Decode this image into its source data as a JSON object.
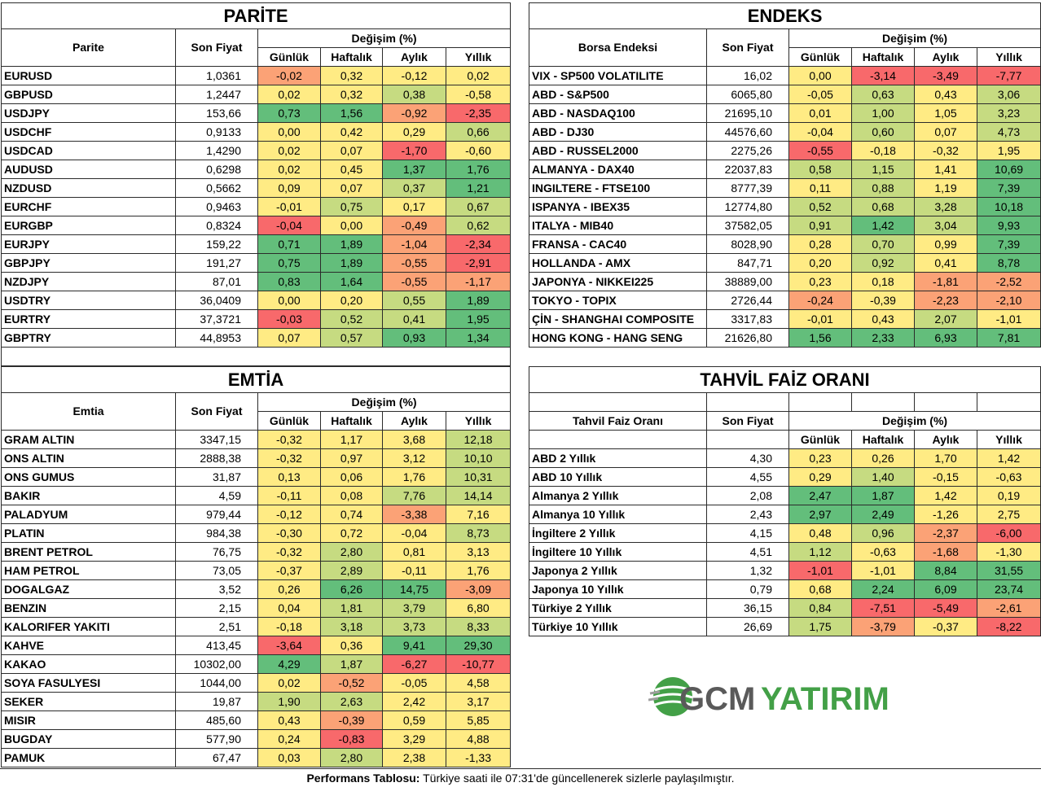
{
  "colors": {
    "red": "#f8696b",
    "orange": "#fba276",
    "yellow": "#ffeb84",
    "lightgreen": "#c6db81",
    "green": "#63be7b"
  },
  "headers": {
    "price": "Son Fiyat",
    "change": "Değişim (%)",
    "daily": "Günlük",
    "weekly": "Haftalık",
    "monthly": "Aylık",
    "yearly": "Yıllık"
  },
  "parite": {
    "title": "PARİTE",
    "name_header": "Parite",
    "rows": [
      {
        "name": "EURUSD",
        "price": "1,0361",
        "d": "-0,02",
        "w": "0,32",
        "m": "-0,12",
        "y": "0,02"
      },
      {
        "name": "GBPUSD",
        "price": "1,2447",
        "d": "0,02",
        "w": "0,32",
        "m": "0,38",
        "y": "-0,58"
      },
      {
        "name": "USDJPY",
        "price": "153,66",
        "d": "0,73",
        "w": "1,56",
        "m": "-0,92",
        "y": "-2,35"
      },
      {
        "name": "USDCHF",
        "price": "0,9133",
        "d": "0,00",
        "w": "0,42",
        "m": "0,29",
        "y": "0,66"
      },
      {
        "name": "USDCAD",
        "price": "1,4290",
        "d": "0,02",
        "w": "0,07",
        "m": "-1,70",
        "y": "-0,60"
      },
      {
        "name": "AUDUSD",
        "price": "0,6298",
        "d": "0,02",
        "w": "0,45",
        "m": "1,37",
        "y": "1,76"
      },
      {
        "name": "NZDUSD",
        "price": "0,5662",
        "d": "0,09",
        "w": "0,07",
        "m": "0,37",
        "y": "1,21"
      },
      {
        "name": "EURCHF",
        "price": "0,9463",
        "d": "-0,01",
        "w": "0,75",
        "m": "0,17",
        "y": "0,67"
      },
      {
        "name": "EURGBP",
        "price": "0,8324",
        "d": "-0,04",
        "w": "0,00",
        "m": "-0,49",
        "y": "0,62"
      },
      {
        "name": "EURJPY",
        "price": "159,22",
        "d": "0,71",
        "w": "1,89",
        "m": "-1,04",
        "y": "-2,34"
      },
      {
        "name": "GBPJPY",
        "price": "191,27",
        "d": "0,75",
        "w": "1,89",
        "m": "-0,55",
        "y": "-2,91"
      },
      {
        "name": "NZDJPY",
        "price": "87,01",
        "d": "0,83",
        "w": "1,64",
        "m": "-0,55",
        "y": "-1,17"
      },
      {
        "name": "USDTRY",
        "price": "36,0409",
        "d": "0,00",
        "w": "0,20",
        "m": "0,55",
        "y": "1,89"
      },
      {
        "name": "EURTRY",
        "price": "37,3721",
        "d": "-0,03",
        "w": "0,52",
        "m": "0,41",
        "y": "1,95"
      },
      {
        "name": "GBPTRY",
        "price": "44,8953",
        "d": "0,07",
        "w": "0,57",
        "m": "0,93",
        "y": "1,34"
      }
    ]
  },
  "endeks": {
    "title": "ENDEKS",
    "name_header": "Borsa Endeksi",
    "rows": [
      {
        "name": "VIX  - SP500 VOLATILITE",
        "price": "16,02",
        "d": "0,00",
        "w": "-3,14",
        "m": "-3,49",
        "y": "-7,77"
      },
      {
        "name": "ABD - S&P500",
        "price": "6065,80",
        "d": "-0,05",
        "w": "0,63",
        "m": "0,43",
        "y": "3,06"
      },
      {
        "name": "ABD - NASDAQ100",
        "price": "21695,10",
        "d": "0,01",
        "w": "1,00",
        "m": "1,05",
        "y": "3,23"
      },
      {
        "name": "ABD - DJ30",
        "price": "44576,60",
        "d": "-0,04",
        "w": "0,60",
        "m": "0,07",
        "y": "4,73"
      },
      {
        "name": "ABD - RUSSEL2000",
        "price": "2275,26",
        "d": "-0,55",
        "w": "-0,18",
        "m": "-0,32",
        "y": "1,95"
      },
      {
        "name": "ALMANYA - DAX40",
        "price": "22037,83",
        "d": "0,58",
        "w": "1,15",
        "m": "1,41",
        "y": "10,69"
      },
      {
        "name": "INGILTERE - FTSE100",
        "price": "8777,39",
        "d": "0,11",
        "w": "0,88",
        "m": "1,19",
        "y": "7,39"
      },
      {
        "name": "ISPANYA - IBEX35",
        "price": "12774,80",
        "d": "0,52",
        "w": "0,68",
        "m": "3,28",
        "y": "10,18"
      },
      {
        "name": "ITALYA - MIB40",
        "price": "37582,05",
        "d": "0,91",
        "w": "1,42",
        "m": "3,04",
        "y": "9,93"
      },
      {
        "name": "FRANSA - CAC40",
        "price": "8028,90",
        "d": "0,28",
        "w": "0,70",
        "m": "0,99",
        "y": "7,39"
      },
      {
        "name": "HOLLANDA - AMX",
        "price": "847,71",
        "d": "0,20",
        "w": "0,92",
        "m": "0,41",
        "y": "8,78"
      },
      {
        "name": "JAPONYA - NIKKEI225",
        "price": "38889,00",
        "d": "0,23",
        "w": "0,18",
        "m": "-1,81",
        "y": "-2,52"
      },
      {
        "name": "TOKYO - TOPIX",
        "price": "2726,44",
        "d": "-0,24",
        "w": "-0,39",
        "m": "-2,23",
        "y": "-2,10"
      },
      {
        "name": "ÇİN - SHANGHAI COMPOSITE",
        "price": "3317,83",
        "d": "-0,01",
        "w": "0,43",
        "m": "2,07",
        "y": "-1,01"
      },
      {
        "name": "HONG KONG - HANG SENG",
        "price": "21626,80",
        "d": "1,56",
        "w": "2,33",
        "m": "6,93",
        "y": "7,81"
      }
    ]
  },
  "emtia": {
    "title": "EMTİA",
    "name_header": "Emtia",
    "rows": [
      {
        "name": "GRAM ALTIN",
        "price": "3347,15",
        "d": "-0,32",
        "w": "1,17",
        "m": "3,68",
        "y": "12,18"
      },
      {
        "name": "ONS ALTIN",
        "price": "2888,38",
        "d": "-0,32",
        "w": "0,97",
        "m": "3,12",
        "y": "10,10"
      },
      {
        "name": "ONS GUMUS",
        "price": "31,87",
        "d": "0,13",
        "w": "0,06",
        "m": "1,76",
        "y": "10,31"
      },
      {
        "name": "BAKIR",
        "price": "4,59",
        "d": "-0,11",
        "w": "0,08",
        "m": "7,76",
        "y": "14,14"
      },
      {
        "name": "PALADYUM",
        "price": "979,44",
        "d": "-0,12",
        "w": "0,74",
        "m": "-3,38",
        "y": "7,16"
      },
      {
        "name": "PLATIN",
        "price": "984,38",
        "d": "-0,30",
        "w": "0,72",
        "m": "-0,04",
        "y": "8,73"
      },
      {
        "name": "BRENT PETROL",
        "price": "76,75",
        "d": "-0,32",
        "w": "2,80",
        "m": "0,81",
        "y": "3,13"
      },
      {
        "name": "HAM PETROL",
        "price": "73,05",
        "d": "-0,37",
        "w": "2,89",
        "m": "-0,11",
        "y": "1,76"
      },
      {
        "name": "DOGALGAZ",
        "price": "3,52",
        "d": "0,26",
        "w": "6,26",
        "m": "14,75",
        "y": "-3,09"
      },
      {
        "name": "BENZIN",
        "price": "2,15",
        "d": "0,04",
        "w": "1,81",
        "m": "3,79",
        "y": "6,80"
      },
      {
        "name": "KALORIFER YAKITI",
        "price": "2,51",
        "d": "-0,18",
        "w": "3,18",
        "m": "3,73",
        "y": "8,33"
      },
      {
        "name": "KAHVE",
        "price": "413,45",
        "d": "-3,64",
        "w": "0,36",
        "m": "9,41",
        "y": "29,30"
      },
      {
        "name": "KAKAO",
        "price": "10302,00",
        "d": "4,29",
        "w": "1,87",
        "m": "-6,27",
        "y": "-10,77"
      },
      {
        "name": "SOYA FASULYESI",
        "price": "1044,00",
        "d": "0,02",
        "w": "-0,52",
        "m": "-0,05",
        "y": "4,58"
      },
      {
        "name": "SEKER",
        "price": "19,87",
        "d": "1,90",
        "w": "2,63",
        "m": "2,42",
        "y": "3,17"
      },
      {
        "name": "MISIR",
        "price": "485,60",
        "d": "0,43",
        "w": "-0,39",
        "m": "0,59",
        "y": "5,85"
      },
      {
        "name": "BUGDAY",
        "price": "577,90",
        "d": "0,24",
        "w": "-0,83",
        "m": "3,29",
        "y": "4,88"
      },
      {
        "name": "PAMUK",
        "price": "67,47",
        "d": "0,03",
        "w": "2,80",
        "m": "2,38",
        "y": "-1,33"
      }
    ]
  },
  "tahvil": {
    "title": "TAHVİL FAİZ ORANI",
    "name_header": "Tahvil Faiz Oranı",
    "rows": [
      {
        "name": "ABD 2 Yıllık",
        "price": "4,30",
        "d": "0,23",
        "w": "0,26",
        "m": "1,70",
        "y": "1,42"
      },
      {
        "name": "ABD 10 Yıllık",
        "price": "4,55",
        "d": "0,29",
        "w": "1,40",
        "m": "-0,15",
        "y": "-0,63"
      },
      {
        "name": "Almanya 2 Yıllık",
        "price": "2,08",
        "d": "2,47",
        "w": "1,87",
        "m": "1,42",
        "y": "0,19"
      },
      {
        "name": "Almanya 10 Yıllık",
        "price": "2,43",
        "d": "2,97",
        "w": "2,49",
        "m": "-1,26",
        "y": "2,75"
      },
      {
        "name": "İngiltere 2 Yıllık",
        "price": "4,15",
        "d": "0,48",
        "w": "0,96",
        "m": "-2,37",
        "y": "-6,00"
      },
      {
        "name": "İngiltere 10 Yıllık",
        "price": "4,51",
        "d": "1,12",
        "w": "-0,63",
        "m": "-1,68",
        "y": "-1,30"
      },
      {
        "name": "Japonya 2 Yıllık",
        "price": "1,32",
        "d": "-1,01",
        "w": "-1,01",
        "m": "8,84",
        "y": "31,55"
      },
      {
        "name": "Japonya 10 Yıllık",
        "price": "0,79",
        "d": "0,68",
        "w": "2,24",
        "m": "6,09",
        "y": "23,74"
      },
      {
        "name": "Türkiye 2 Yıllık",
        "price": "36,15",
        "d": "0,84",
        "w": "-7,51",
        "m": "-5,49",
        "y": "-2,61"
      },
      {
        "name": "Türkiye 10 Yıllık",
        "price": "26,69",
        "d": "1,75",
        "w": "-3,79",
        "m": "-0,37",
        "y": "-8,22"
      }
    ]
  },
  "logo": {
    "text_gcm": "GCM",
    "text_yatirim": "YATIRIM",
    "color_gcm": "#5a5a5a",
    "color_yatirim": "#43a047"
  },
  "footer": {
    "bold": "Performans Tablosu:",
    "text": " Türkiye saati ile 07:31'de güncellenerek sizlerle paylaşılmıştır."
  }
}
